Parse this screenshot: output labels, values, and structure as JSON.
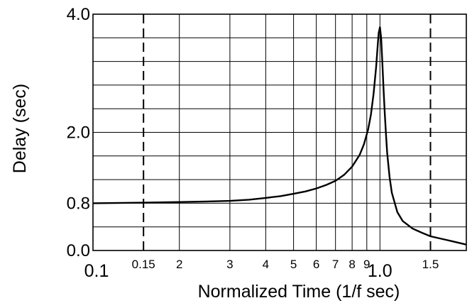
{
  "chart_data": {
    "type": "line",
    "title": "",
    "xlabel": "Normalized Time (1/f sec)",
    "ylabel": "Delay (sec)",
    "x_scale": "log",
    "xlim": [
      0.1,
      2.0
    ],
    "ylim": [
      0.0,
      4.0
    ],
    "grid": true,
    "x_ticks": [
      {
        "value": 0.1,
        "label": "0.1",
        "size": "large"
      },
      {
        "value": 0.15,
        "label": "0.15",
        "size": "small"
      },
      {
        "value": 0.2,
        "label": "2",
        "size": "small"
      },
      {
        "value": 0.3,
        "label": "3",
        "size": "small"
      },
      {
        "value": 0.4,
        "label": "4",
        "size": "small"
      },
      {
        "value": 0.5,
        "label": "5",
        "size": "small"
      },
      {
        "value": 0.6,
        "label": "6",
        "size": "small"
      },
      {
        "value": 0.7,
        "label": "7",
        "size": "small"
      },
      {
        "value": 0.8,
        "label": "8",
        "size": "small"
      },
      {
        "value": 0.9,
        "label": "9",
        "size": "small"
      },
      {
        "value": 1.0,
        "label": "1.0",
        "size": "large"
      },
      {
        "value": 1.5,
        "label": "1.5",
        "size": "small"
      }
    ],
    "y_ticks": [
      {
        "value": 0.0,
        "label": "0.0"
      },
      {
        "value": 0.8,
        "label": "0.8"
      },
      {
        "value": 2.0,
        "label": "2.0"
      },
      {
        "value": 4.0,
        "label": "4.0"
      }
    ],
    "x_grid": [
      0.2,
      0.3,
      0.4,
      0.5,
      0.6,
      0.7,
      0.8,
      0.9,
      1.0
    ],
    "y_grid": [
      0.4,
      0.8,
      1.2,
      1.6,
      2.0,
      2.4,
      2.8,
      3.2,
      3.6,
      4.0
    ],
    "dashed_lines_x": [
      0.15,
      1.5
    ],
    "series": [
      {
        "x": [
          0.1,
          0.15,
          0.2,
          0.25,
          0.3,
          0.35,
          0.4,
          0.45,
          0.5,
          0.55,
          0.6,
          0.65,
          0.7,
          0.75,
          0.8,
          0.85,
          0.88,
          0.91,
          0.93,
          0.95,
          0.97,
          0.98,
          0.99,
          1.0,
          1.01,
          1.02,
          1.03,
          1.04,
          1.05,
          1.06,
          1.08,
          1.1,
          1.15,
          1.2,
          1.3,
          1.4,
          1.5,
          1.7,
          2.0
        ],
        "y": [
          0.8,
          0.81,
          0.82,
          0.83,
          0.84,
          0.86,
          0.89,
          0.92,
          0.96,
          1.0,
          1.05,
          1.11,
          1.18,
          1.28,
          1.42,
          1.62,
          1.8,
          2.05,
          2.3,
          2.65,
          3.1,
          3.4,
          3.68,
          3.78,
          3.6,
          3.15,
          2.7,
          2.3,
          1.95,
          1.65,
          1.25,
          0.98,
          0.65,
          0.5,
          0.37,
          0.3,
          0.24,
          0.18,
          0.1
        ]
      }
    ]
  }
}
